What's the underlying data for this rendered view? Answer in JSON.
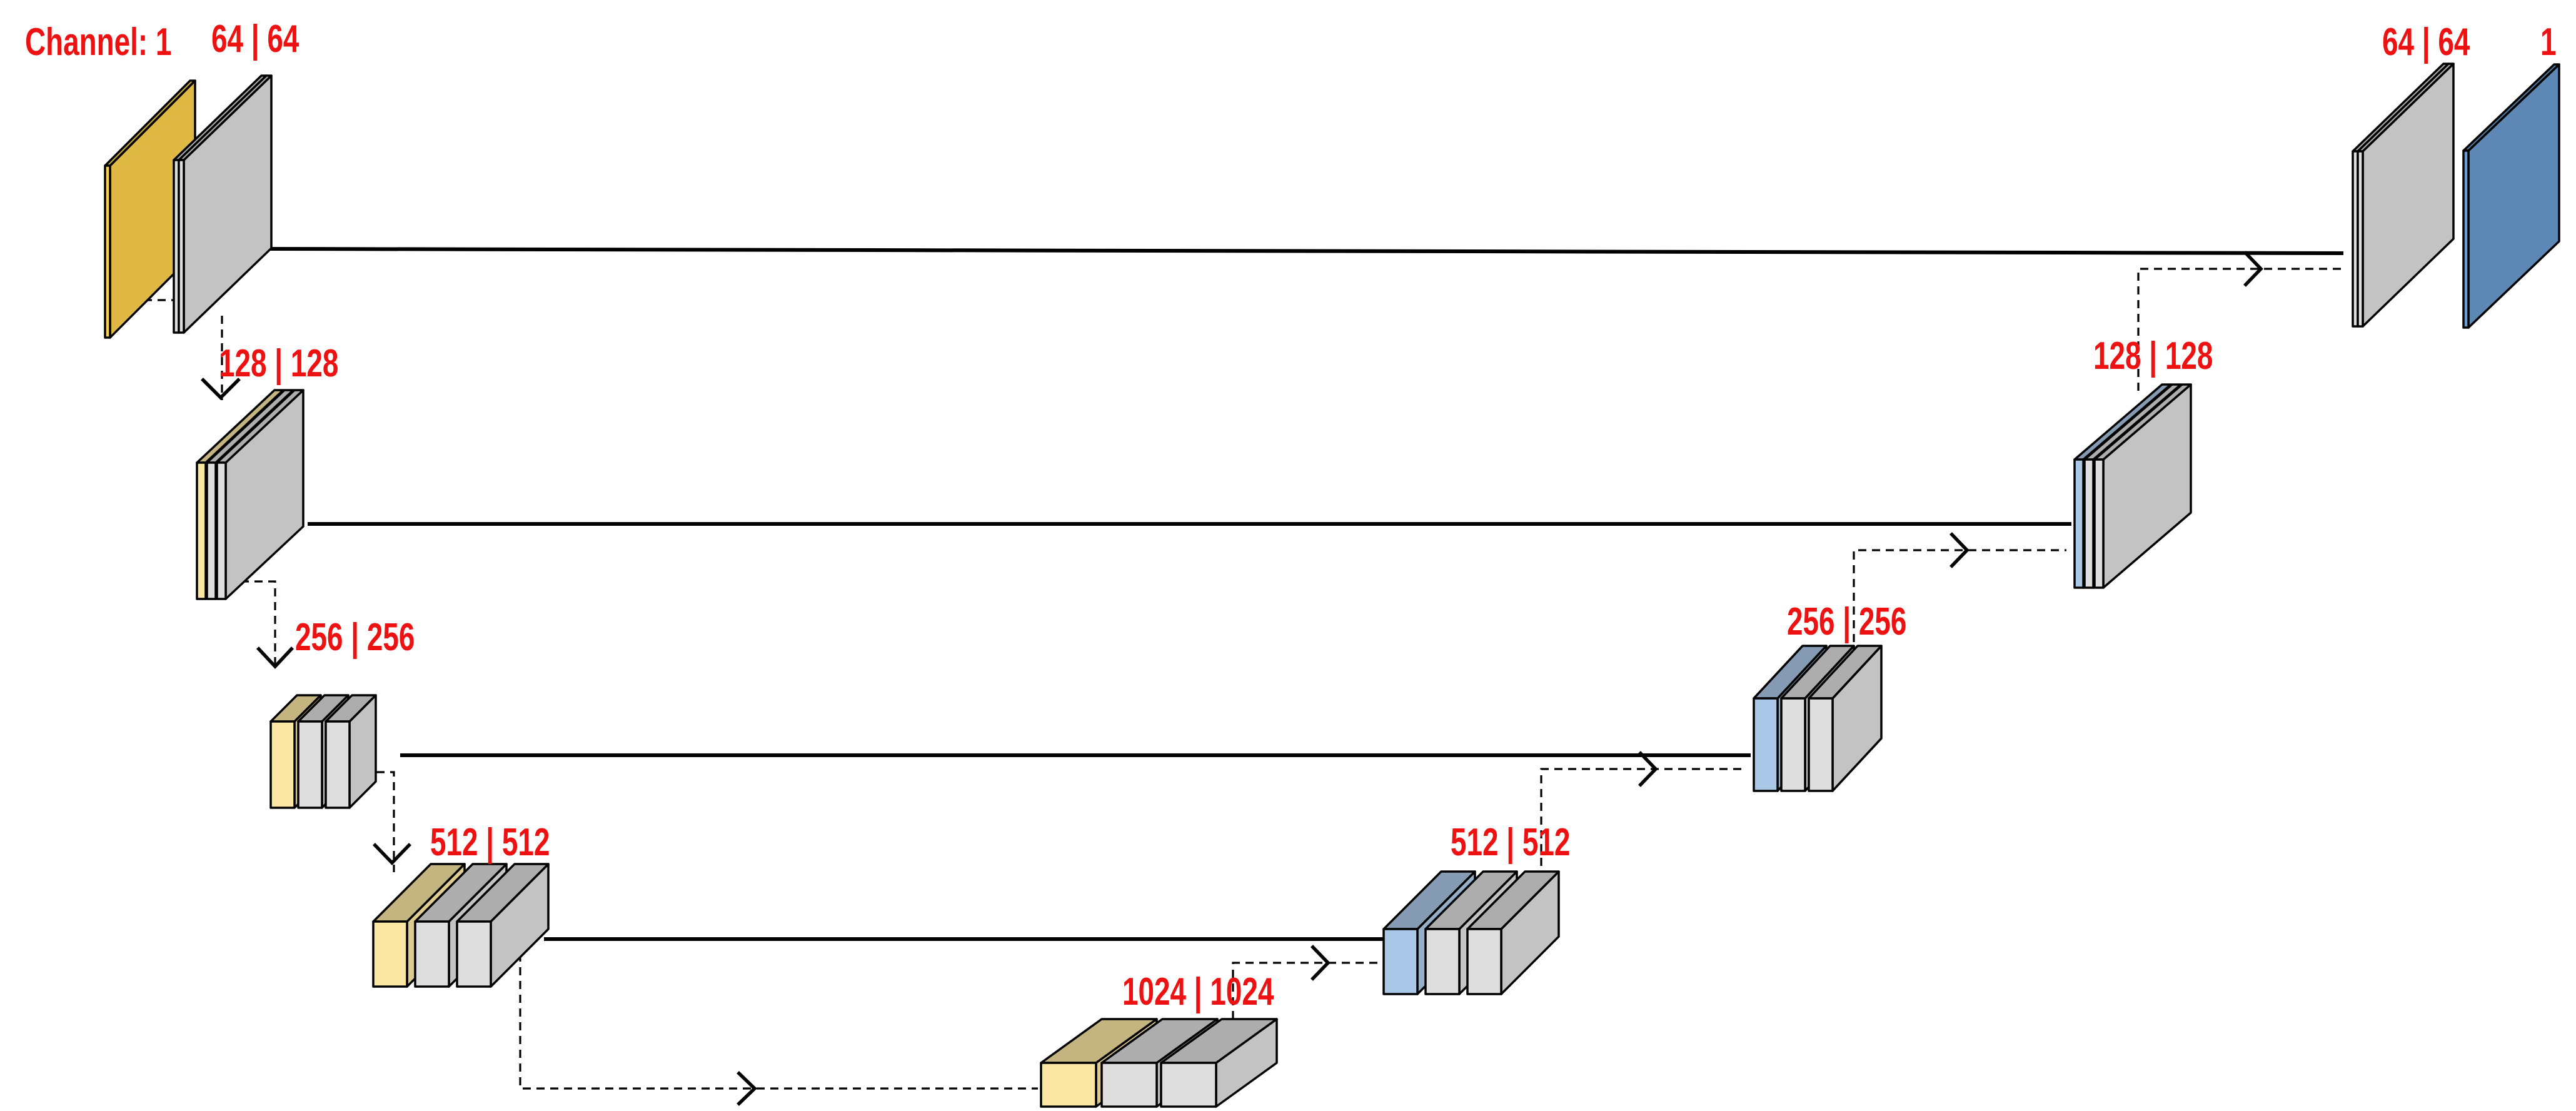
{
  "labels": {
    "input_channel": "Channel: 1",
    "enc1": "64 | 64",
    "enc2": "128 | 128",
    "enc3": "256 | 256",
    "enc4": "512 | 512",
    "bottleneck": "1024 | 1024",
    "dec4": "512 | 512",
    "dec3": "256 | 256",
    "dec2": "128 | 128",
    "dec1": "64 | 64",
    "output_channel": "1"
  },
  "colors": {
    "input_block": "#ffd24d",
    "encoder_pool_block": "#fbe7a3",
    "conv_block": "#dedede",
    "decoder_up_block": "#a9c7e6",
    "output_block": "#6a9bcf",
    "label_text": "#ee1111",
    "lines": "#000000"
  },
  "icons": {
    "down_arrow": "chevron-down-icon",
    "right_arrow": "chevron-right-icon"
  }
}
